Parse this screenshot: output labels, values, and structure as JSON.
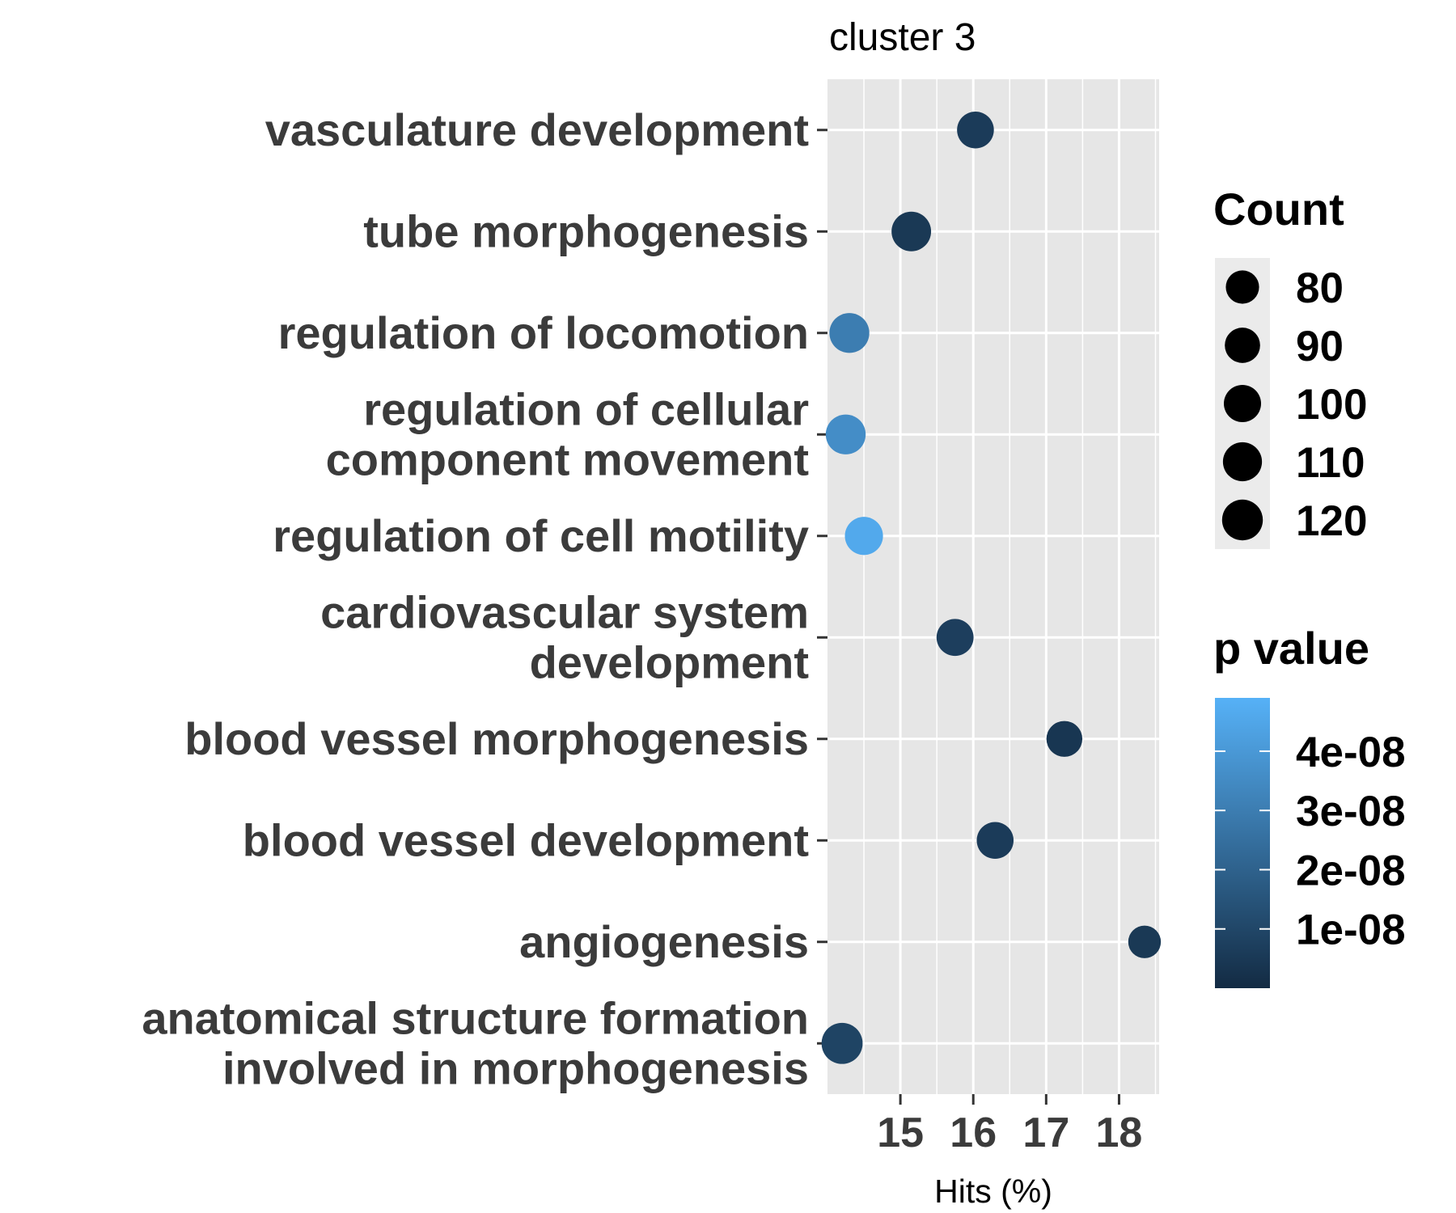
{
  "chart_data": {
    "type": "scatter",
    "title": "cluster 3",
    "xlabel": "Hits (%)",
    "ylabel": "",
    "xlim": [
      14.0,
      18.55
    ],
    "xticks": [
      15,
      16,
      17,
      18
    ],
    "xtick_labels": [
      "15",
      "16",
      "17",
      "18"
    ],
    "grid": true,
    "categories": [
      [
        "vasculature development"
      ],
      [
        "tube morphogenesis"
      ],
      [
        "regulation of locomotion"
      ],
      [
        "regulation of cellular",
        "component movement"
      ],
      [
        "regulation of cell motility"
      ],
      [
        "cardiovascular system",
        "development"
      ],
      [
        "blood vessel morphogenesis"
      ],
      [
        "blood vessel development"
      ],
      [
        "angiogenesis"
      ],
      [
        "anatomical structure formation",
        "involved in morphogenesis"
      ]
    ],
    "points": [
      {
        "x": 16.03,
        "count": 98,
        "p": 6e-09
      },
      {
        "x": 15.15,
        "count": 113,
        "p": 5e-09
      },
      {
        "x": 14.3,
        "count": 115,
        "p": 3e-08
      },
      {
        "x": 14.25,
        "count": 115,
        "p": 3.6e-08
      },
      {
        "x": 14.5,
        "count": 105,
        "p": 4.6e-08
      },
      {
        "x": 15.75,
        "count": 99,
        "p": 7e-09
      },
      {
        "x": 17.25,
        "count": 93,
        "p": 4e-09
      },
      {
        "x": 16.3,
        "count": 98,
        "p": 6e-09
      },
      {
        "x": 18.35,
        "count": 77,
        "p": 5e-09
      },
      {
        "x": 14.2,
        "count": 122,
        "p": 9e-09
      }
    ],
    "legend": {
      "placement": "right",
      "size_title": "Count",
      "size_breaks": [
        80,
        90,
        100,
        110,
        120
      ],
      "size_labels": [
        "80",
        "90",
        "100",
        "110",
        "120"
      ],
      "color_title": "p value",
      "color_breaks": [
        4e-08,
        3e-08,
        2e-08,
        1e-08
      ],
      "color_labels": [
        "4e-08",
        "3e-08",
        "2e-08",
        "1e-08"
      ],
      "color_range": [
        0,
        4.9e-08
      ],
      "color_low": "#132b43",
      "color_high": "#56b1f7"
    },
    "panel_background": "#e6e6e6",
    "grid_color": "#ffffff"
  }
}
